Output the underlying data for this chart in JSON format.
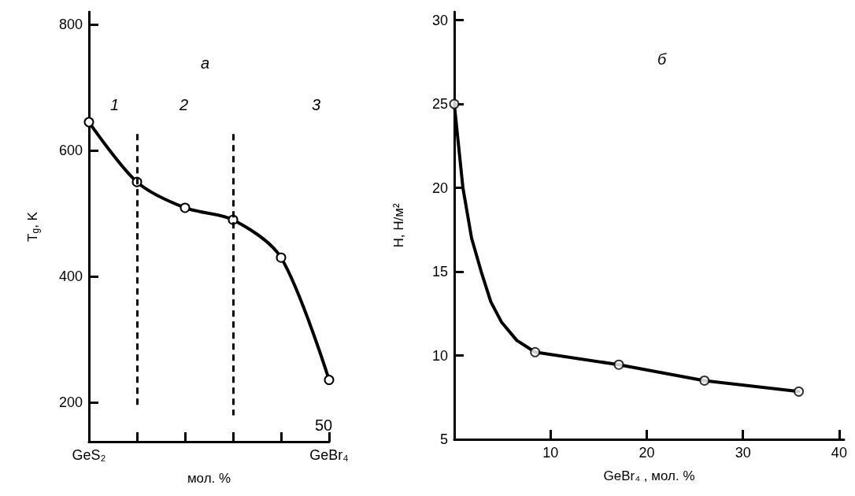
{
  "chart_data": [
    {
      "type": "line",
      "xlabel": "мол. %",
      "ylabel": "T$_{g}$, K",
      "ylim": [
        138,
        820
      ],
      "categories": [
        "GeS₂",
        null,
        null,
        null,
        null,
        "GeBr₄"
      ],
      "yticks": [
        200,
        400,
        600,
        800
      ],
      "grid": false,
      "marker": "circle",
      "line_style": "solid",
      "series": [
        {
          "color": "#000000",
          "values": [
            645,
            550,
            509,
            490,
            430,
            236
          ]
        }
      ],
      "annotations": [
        "а",
        "1",
        "2",
        "3",
        "50"
      ]
    },
    {
      "type": "line",
      "xlabel": "GeBr₄ , мол. %",
      "ylabel": "H, Н/м²",
      "xlim": [
        0,
        40.5
      ],
      "ylim": [
        5,
        30.5
      ],
      "xticks": [
        10,
        20,
        30,
        40
      ],
      "yticks": [
        5,
        10,
        15,
        20,
        25,
        30
      ],
      "grid": false,
      "series": [
        {
          "color": "#000000",
          "marker": "none",
          "line_style": "solid",
          "x": [
            0,
            0.9,
            1.8,
            2.8,
            3.8,
            4.9,
            6.5,
            8.4,
            17.1,
            26,
            35.8
          ],
          "values": [
            25,
            20,
            17,
            15,
            13.2,
            12,
            10.9,
            10.2,
            9.45,
            8.5,
            7.85
          ]
        },
        {
          "type": "scatter",
          "color": "#000000",
          "marker": "circle",
          "x": [
            0,
            8.4,
            17.1,
            26,
            35.8
          ],
          "values": [
            25,
            10.2,
            9.45,
            8.5,
            7.85
          ]
        }
      ],
      "annotations": [
        "б"
      ]
    }
  ]
}
